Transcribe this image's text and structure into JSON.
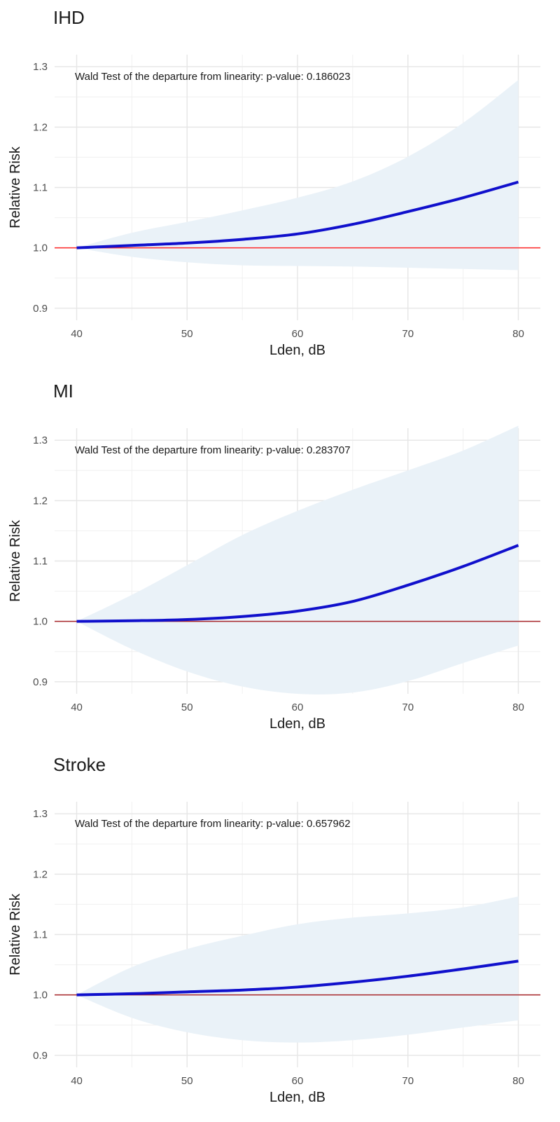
{
  "chart_data": [
    {
      "type": "line",
      "title": "IHD",
      "xlabel": "Lden, dB",
      "ylabel": "Relative Risk",
      "xlim": [
        38,
        82
      ],
      "ylim": [
        0.88,
        1.32
      ],
      "xticks": [
        40,
        50,
        60,
        70,
        80
      ],
      "yticks": [
        0.9,
        1.0,
        1.1,
        1.2,
        1.3
      ],
      "xtick_labels": [
        "40",
        "50",
        "60",
        "70",
        "80"
      ],
      "ytick_labels": [
        "0.9",
        "1.0",
        "1.1",
        "1.2",
        "1.3"
      ],
      "annotation": "Wald Test of the departure from linearity: p-value: 0.186023",
      "reference_line": 1.0,
      "reference_color": "#ff2a2a",
      "curve_color": "#1010cc",
      "band_color": "#eaf2f8",
      "x": [
        40,
        45,
        50,
        55,
        60,
        65,
        70,
        75,
        80
      ],
      "rr": [
        1.0,
        1.004,
        1.008,
        1.014,
        1.023,
        1.039,
        1.06,
        1.083,
        1.109
      ],
      "ci_lower": [
        1.0,
        0.985,
        0.976,
        0.971,
        0.97,
        0.969,
        0.967,
        0.965,
        0.963
      ],
      "ci_upper": [
        1.0,
        1.025,
        1.043,
        1.062,
        1.083,
        1.11,
        1.151,
        1.207,
        1.278
      ]
    },
    {
      "type": "line",
      "title": "MI",
      "xlabel": "Lden, dB",
      "ylabel": "Relative Risk",
      "xlim": [
        38,
        82
      ],
      "ylim": [
        0.88,
        1.32
      ],
      "xticks": [
        40,
        50,
        60,
        70,
        80
      ],
      "yticks": [
        0.9,
        1.0,
        1.1,
        1.2,
        1.3
      ],
      "xtick_labels": [
        "40",
        "50",
        "60",
        "70",
        "80"
      ],
      "ytick_labels": [
        "0.9",
        "1.0",
        "1.1",
        "1.2",
        "1.3"
      ],
      "annotation": "Wald Test of the departure from linearity: p-value: 0.283707",
      "reference_line": 1.0,
      "reference_color": "#a8282c",
      "curve_color": "#1010cc",
      "band_color": "#eaf2f8",
      "x": [
        40,
        45,
        50,
        55,
        60,
        65,
        70,
        75,
        80
      ],
      "rr": [
        1.0,
        1.001,
        1.003,
        1.008,
        1.017,
        1.033,
        1.06,
        1.091,
        1.126
      ],
      "ci_lower": [
        1.0,
        0.954,
        0.917,
        0.892,
        0.88,
        0.882,
        0.901,
        0.931,
        0.96
      ],
      "ci_upper": [
        1.0,
        1.044,
        1.093,
        1.143,
        1.183,
        1.218,
        1.25,
        1.283,
        1.324
      ]
    },
    {
      "type": "line",
      "title": "Stroke",
      "xlabel": "Lden, dB",
      "ylabel": "Relative Risk",
      "xlim": [
        38,
        82
      ],
      "ylim": [
        0.88,
        1.32
      ],
      "xticks": [
        40,
        50,
        60,
        70,
        80
      ],
      "yticks": [
        0.9,
        1.0,
        1.1,
        1.2,
        1.3
      ],
      "xtick_labels": [
        "40",
        "50",
        "60",
        "70",
        "80"
      ],
      "ytick_labels": [
        "0.9",
        "1.0",
        "1.1",
        "1.2",
        "1.3"
      ],
      "annotation": "Wald Test of the departure from linearity: p-value: 0.657962",
      "reference_line": 1.0,
      "reference_color": "#a8282c",
      "curve_color": "#1010cc",
      "band_color": "#eaf2f8",
      "x": [
        40,
        45,
        50,
        55,
        60,
        65,
        70,
        75,
        80
      ],
      "rr": [
        1.0,
        1.002,
        1.005,
        1.008,
        1.013,
        1.021,
        1.031,
        1.043,
        1.056
      ],
      "ci_lower": [
        1.0,
        0.962,
        0.938,
        0.925,
        0.921,
        0.925,
        0.934,
        0.946,
        0.958
      ],
      "ci_upper": [
        1.0,
        1.046,
        1.076,
        1.098,
        1.117,
        1.128,
        1.135,
        1.145,
        1.163
      ]
    }
  ]
}
